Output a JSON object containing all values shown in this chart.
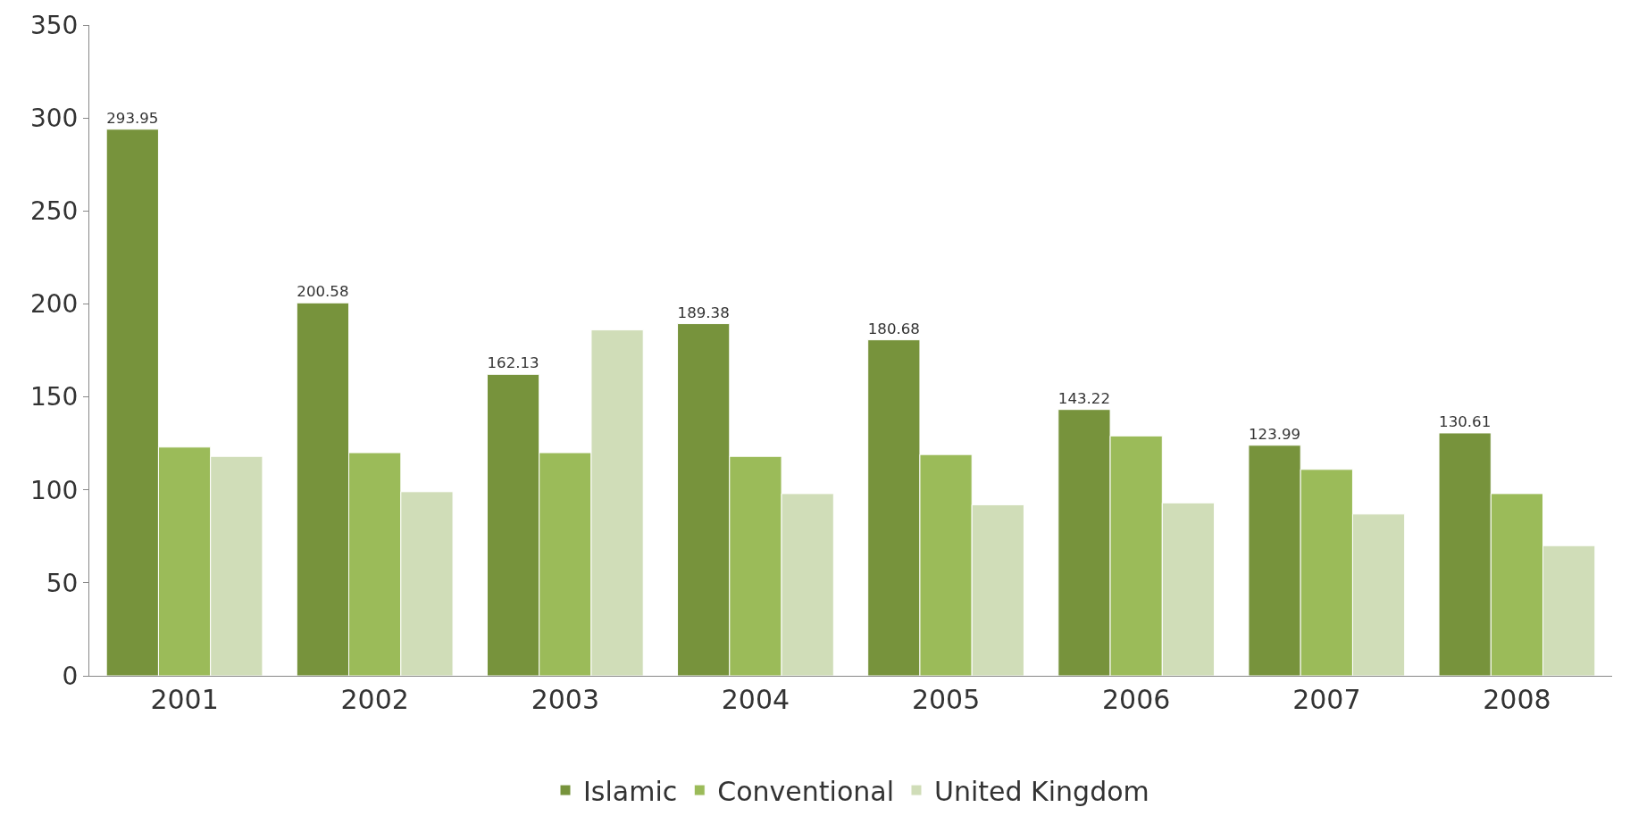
{
  "chart_data": {
    "type": "bar",
    "categories": [
      "2001",
      "2002",
      "2003",
      "2004",
      "2005",
      "2006",
      "2007",
      "2008"
    ],
    "series": [
      {
        "name": "Islamic",
        "color": "#77933c",
        "values": [
          293.95,
          200.58,
          162.13,
          189.38,
          180.68,
          143.22,
          123.99,
          130.61
        ],
        "value_labels": [
          "293.95",
          "200.58",
          "162.13",
          "189.38",
          "180.68",
          "143.22",
          "123.99",
          "130.61"
        ]
      },
      {
        "name": "Conventional",
        "color": "#9bbb59",
        "values": [
          123,
          120,
          120,
          118,
          119,
          129,
          111,
          98
        ]
      },
      {
        "name": "United Kingdom",
        "color": "#d0ddb8",
        "values": [
          118,
          99,
          186,
          98,
          92,
          93,
          87,
          70
        ]
      }
    ],
    "ylim": [
      0,
      350
    ],
    "yticks": [
      0,
      50,
      100,
      150,
      200,
      250,
      300,
      350
    ],
    "grid": false,
    "legend": "bottom"
  }
}
